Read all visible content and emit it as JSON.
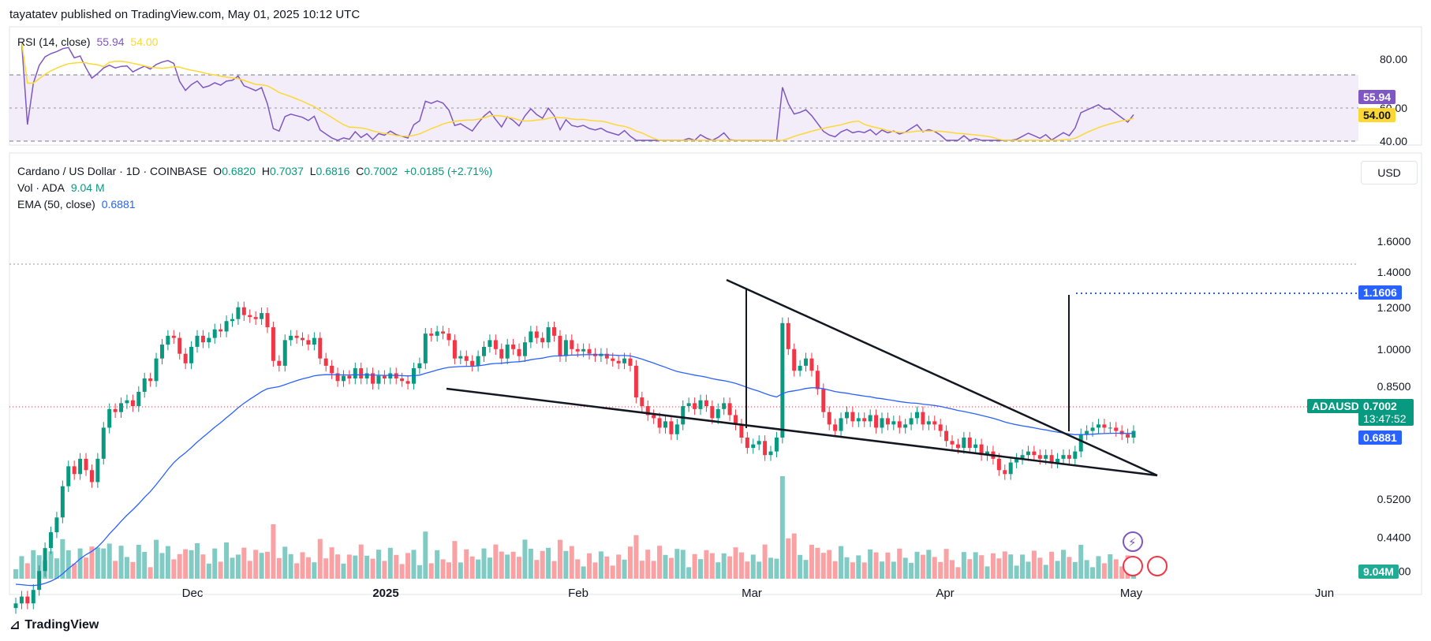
{
  "header": {
    "publisher": "tayatatev published on TradingView.com, May 01, 2025 10:12 UTC"
  },
  "footer": {
    "brand": "TradingView"
  },
  "rsi": {
    "legend_name": "RSI (14, close)",
    "rsi_value": "55.94",
    "ma_value": "54.00",
    "levels": [
      "80.00",
      "60.00",
      "40.00"
    ],
    "badges": [
      "55.94",
      "54.00"
    ]
  },
  "main": {
    "symbol_title": "Cardano / US Dollar · 1D · COINBASE",
    "o_label": "O",
    "o_value": "0.6820",
    "h_label": "H",
    "h_value": "0.7037",
    "l_label": "L",
    "l_value": "0.6816",
    "c_label": "C",
    "c_value": "0.7002",
    "change": "+0.0185 (+2.71%)",
    "vol_label": "Vol · ADA",
    "vol_value": "9.04 M",
    "ema_label": "EMA (50, close)",
    "ema_value": "0.6881",
    "currency": "USD",
    "price_labels": [
      "1.6000",
      "1.4000",
      "1.2000",
      "1.0000",
      "0.8500",
      "0.5200",
      "0.4400",
      "0.3800"
    ],
    "badge_target": "1.1606",
    "badge_symbol": "ADAUSD",
    "badge_price": "0.7002",
    "badge_countdown": "13:47:52",
    "badge_ema": "0.6881",
    "badge_vol": "9.04M",
    "x_labels": [
      "Dec",
      "2025",
      "Feb",
      "Mar",
      "Apr",
      "May",
      "Jun"
    ]
  },
  "colors": {
    "up": "#089981",
    "down": "#f23645",
    "ema": "#2962ff",
    "rsi": "#7e57c2",
    "rsi_ma": "#fdd835",
    "vol_up": "#80cbc4",
    "vol_down": "#faa1a4"
  },
  "chart_data": {
    "type": "candlestick",
    "title": "Cardano / US Dollar · 1D · COINBASE",
    "ylabel": "USD",
    "ylim": [
      0.36,
      1.75
    ],
    "y_scale": "log",
    "x_ticks": [
      "Dec",
      "2025",
      "Feb",
      "Mar",
      "Apr",
      "May",
      "Jun"
    ],
    "close_series": [
      0.33,
      0.34,
      0.33,
      0.35,
      0.38,
      0.42,
      0.45,
      0.48,
      0.55,
      0.6,
      0.58,
      0.62,
      0.59,
      0.56,
      0.62,
      0.71,
      0.77,
      0.76,
      0.79,
      0.8,
      0.78,
      0.83,
      0.88,
      0.87,
      0.96,
      1.02,
      1.06,
      1.05,
      0.98,
      0.94,
      1.01,
      1.06,
      1.03,
      1.05,
      1.09,
      1.08,
      1.13,
      1.14,
      1.2,
      1.16,
      1.15,
      1.14,
      1.17,
      1.1,
      0.95,
      0.93,
      1.04,
      1.06,
      1.05,
      1.04,
      1.02,
      1.05,
      0.96,
      0.93,
      0.9,
      0.87,
      0.89,
      0.88,
      0.92,
      0.88,
      0.9,
      0.86,
      0.89,
      0.88,
      0.9,
      0.88,
      0.87,
      0.86,
      0.92,
      0.94,
      1.07,
      1.06,
      1.08,
      1.07,
      1.04,
      0.96,
      0.97,
      0.95,
      0.93,
      0.97,
      1.01,
      1.04,
      1.0,
      0.96,
      1.02,
      1.0,
      0.97,
      1.03,
      1.08,
      1.05,
      1.03,
      1.1,
      1.06,
      0.97,
      1.04,
      1.0,
      0.99,
      1.0,
      0.98,
      0.97,
      0.98,
      0.96,
      0.95,
      0.94,
      0.96,
      0.93,
      0.81,
      0.78,
      0.75,
      0.74,
      0.71,
      0.73,
      0.69,
      0.72,
      0.78,
      0.79,
      0.77,
      0.8,
      0.78,
      0.74,
      0.77,
      0.79,
      0.75,
      0.72,
      0.68,
      0.65,
      0.66,
      0.67,
      0.63,
      0.64,
      0.68,
      1.12,
      1.0,
      0.91,
      0.93,
      0.96,
      0.91,
      0.84,
      0.76,
      0.72,
      0.7,
      0.74,
      0.76,
      0.73,
      0.74,
      0.73,
      0.75,
      0.71,
      0.74,
      0.72,
      0.73,
      0.71,
      0.72,
      0.74,
      0.76,
      0.72,
      0.73,
      0.72,
      0.7,
      0.67,
      0.66,
      0.65,
      0.68,
      0.65,
      0.66,
      0.63,
      0.64,
      0.62,
      0.59,
      0.58,
      0.61,
      0.62,
      0.63,
      0.64,
      0.63,
      0.62,
      0.63,
      0.61,
      0.62,
      0.63,
      0.62,
      0.64,
      0.69,
      0.7,
      0.71,
      0.72,
      0.71,
      0.71,
      0.7,
      0.69,
      0.68,
      0.7
    ],
    "ema_50": {
      "start": 0.36,
      "end": 0.6881
    },
    "volume": {
      "last": "9.04M"
    },
    "rsi": {
      "rsi_last": 55.94,
      "ma_last": 54.0,
      "levels": [
        80,
        60,
        40
      ]
    },
    "annotations": {
      "target_level": 1.1606,
      "last_price": 0.7002,
      "ema_last": 0.6881,
      "pattern": "falling wedge"
    }
  }
}
